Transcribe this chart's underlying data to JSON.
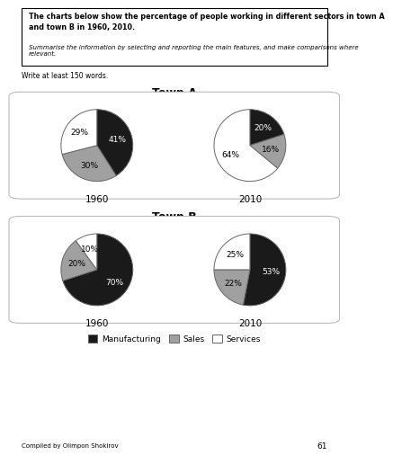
{
  "title_bold_text": "The charts below show the percentage of people working in different sectors in town A\nand town B in 1960, 2010.",
  "subtitle_text": "Summarise the information by selecting and reporting the main features, and make comparisons where\nrelevant.",
  "write_text": "Write at least 150 words.",
  "town_a_label": "Town A",
  "town_b_label": "Town B",
  "footer_text": "Compiled by Olimpon Shokirov",
  "page_number": "61",
  "colors": {
    "manufacturing": "#1a1a1a",
    "sales": "#a0a0a0",
    "services": "#ffffff"
  },
  "town_a_1960": [
    41,
    30,
    29
  ],
  "town_a_2010": [
    20,
    16,
    64
  ],
  "town_b_1960": [
    70,
    20,
    10
  ],
  "town_b_2010": [
    53,
    22,
    25
  ],
  "year_labels": [
    "1960",
    "2010"
  ],
  "legend_labels": [
    "Manufacturing",
    "Sales",
    "Services"
  ],
  "bg_color": "#ffffff"
}
